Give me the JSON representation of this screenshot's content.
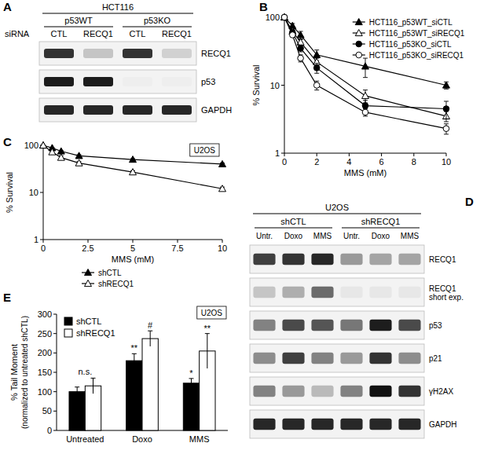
{
  "chart_data": [
    {
      "panel": "B",
      "type": "line",
      "log": "y",
      "x_label": "MMS (mM)",
      "y_label": "% Survival",
      "x": [
        0,
        0.5,
        1,
        2,
        5,
        10
      ],
      "xlim": [
        0,
        10
      ],
      "xticks": [
        0,
        2,
        4,
        6,
        8,
        10
      ],
      "ylim": [
        1,
        100
      ],
      "yticks": [
        1,
        10,
        100
      ],
      "legend": "top-right",
      "series": [
        {
          "name": "HCT116_p53WT_siCTL",
          "color": "#000000",
          "marker": "triangle",
          "values": [
            100,
            75,
            55,
            28,
            19,
            10
          ],
          "errors": [
            0,
            6,
            7,
            5,
            6,
            1.2
          ]
        },
        {
          "name": "HCT116_p53WT_siRECQ1",
          "color": "#000000",
          "marker": "triangle-open",
          "values": [
            100,
            62,
            43,
            22,
            7,
            3.5
          ],
          "errors": [
            0,
            4,
            4,
            3,
            1.5,
            0.6
          ]
        },
        {
          "name": "HCT116_p53KO_siCTL",
          "color": "#000000",
          "marker": "circle",
          "values": [
            100,
            60,
            35,
            18,
            5,
            4.5
          ],
          "errors": [
            0,
            4,
            4,
            3,
            1,
            1.3
          ]
        },
        {
          "name": "HCT116_p53KO_siRECQ1",
          "color": "#000000",
          "marker": "circle-open",
          "values": [
            100,
            55,
            25,
            10,
            4,
            2.3
          ],
          "errors": [
            0,
            3,
            3,
            1.5,
            0.5,
            0.4
          ]
        }
      ]
    },
    {
      "panel": "C",
      "type": "line",
      "log": "y",
      "subtitle": "U2OS",
      "x_label": "MMS (mM)",
      "y_label": "% Survival",
      "x": [
        0,
        0.5,
        1,
        2,
        5,
        10
      ],
      "xlim": [
        0,
        10
      ],
      "xticks": [
        0,
        2.5,
        5,
        7.5,
        10
      ],
      "ylim": [
        1,
        100
      ],
      "yticks": [
        1,
        10,
        100
      ],
      "legend": "bottom",
      "series": [
        {
          "name": "shCTL",
          "color": "#000000",
          "marker": "triangle",
          "values": [
            100,
            88,
            75,
            60,
            50,
            40
          ],
          "errors": [
            0,
            2,
            2,
            3,
            2,
            2
          ]
        },
        {
          "name": "shRECQ1",
          "color": "#000000",
          "marker": "triangle-open",
          "values": [
            100,
            72,
            55,
            42,
            27,
            12
          ],
          "errors": [
            0,
            4,
            5,
            3,
            2,
            1
          ]
        }
      ]
    },
    {
      "panel": "E",
      "type": "bar",
      "subtitle": "U2OS",
      "y_label": [
        "% Tail Moment",
        "(normalized to untreated shCTL)"
      ],
      "categories": [
        "Untreated",
        "Doxo",
        "MMS"
      ],
      "ylim": [
        0,
        300
      ],
      "yticks": [
        0,
        50,
        100,
        150,
        200,
        250,
        300
      ],
      "legend": "top-left",
      "series": [
        {
          "name": "shCTL",
          "color": "#000000",
          "values": [
            100,
            180,
            122
          ],
          "errors": [
            12,
            18,
            12
          ],
          "annotations": [
            null,
            "**",
            "*"
          ]
        },
        {
          "name": "shRECQ1",
          "color": "#ffffff",
          "values": [
            115,
            237,
            205
          ],
          "errors": [
            20,
            20,
            45
          ],
          "annotations": [
            null,
            "#",
            "**"
          ]
        }
      ],
      "annotations": [
        {
          "text": "n.s.",
          "category": "Untreated"
        }
      ]
    }
  ],
  "blots": [
    {
      "panel": "A",
      "type": "western_blot",
      "title": "HCT116",
      "lane_title": "siRNA",
      "groups": [
        {
          "name": "p53WT",
          "lanes": 2
        },
        {
          "name": "p53KO",
          "lanes": 2
        }
      ],
      "lanes": [
        "CTL",
        "RECQ1",
        "CTL",
        "RECQ1"
      ],
      "rows": [
        {
          "name": "RECQ1",
          "intensity": [
            0.85,
            0.2,
            0.85,
            0.15
          ]
        },
        {
          "name": "p53",
          "intensity": [
            0.95,
            0.95,
            0.02,
            0.02
          ]
        },
        {
          "name": "GAPDH",
          "intensity": [
            0.9,
            0.9,
            0.9,
            0.9
          ]
        }
      ]
    },
    {
      "panel": "D",
      "type": "western_blot",
      "title": "U2OS",
      "groups": [
        {
          "name": "shCTL",
          "lanes": 3
        },
        {
          "name": "shRECQ1",
          "lanes": 3
        }
      ],
      "lanes": [
        "Untr.",
        "Doxo",
        "MMS",
        "Untr.",
        "Doxo",
        "MMS"
      ],
      "rows": [
        {
          "name": "RECQ1",
          "intensity": [
            0.8,
            0.85,
            0.9,
            0.4,
            0.35,
            0.35
          ]
        },
        {
          "name": "RECQ1 short exp.",
          "intensity": [
            0.2,
            0.3,
            0.6,
            0.05,
            0.05,
            0.05
          ]
        },
        {
          "name": "p53",
          "intensity": [
            0.5,
            0.75,
            0.7,
            0.55,
            0.95,
            0.75
          ]
        },
        {
          "name": "p21",
          "intensity": [
            0.45,
            0.8,
            0.5,
            0.4,
            0.85,
            0.45
          ]
        },
        {
          "name": "γH2AX",
          "intensity": [
            0.5,
            0.4,
            0.25,
            0.5,
            1.0,
            0.85
          ]
        },
        {
          "name": "GAPDH",
          "intensity": [
            0.9,
            0.9,
            0.9,
            0.9,
            0.9,
            0.9
          ]
        }
      ]
    }
  ]
}
